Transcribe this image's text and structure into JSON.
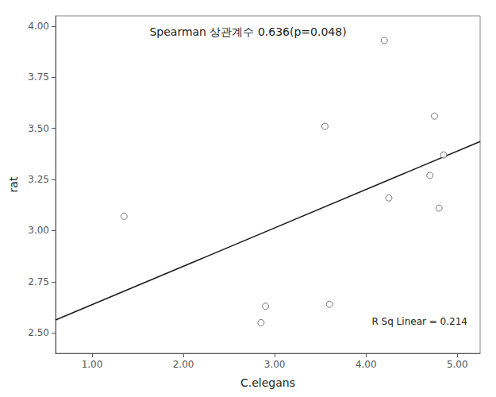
{
  "chart_data": {
    "type": "scatter",
    "xlabel": "C.elegans",
    "ylabel": "rat",
    "annotations": [
      "Spearman 상관계수 0.636(p=0.048)",
      "R Sq Linear = 0.214"
    ],
    "series": [
      {
        "type": "scatter",
        "marker": "open circle",
        "color": "#555555",
        "x": [
          1.35,
          2.85,
          2.9,
          3.55,
          3.6,
          4.2,
          4.25,
          4.7,
          4.75,
          4.8,
          4.85
        ],
        "values": [
          3.07,
          2.55,
          2.63,
          3.51,
          2.64,
          3.93,
          3.16,
          3.27,
          3.56,
          3.11,
          3.37
        ]
      },
      {
        "type": "line",
        "color": "#1a1a1a",
        "line_style": "solid",
        "x": [
          0.6,
          5.25
        ],
        "values": [
          2.5631,
          3.4357
        ]
      }
    ],
    "xlim": [
      0.6,
      5.25
    ],
    "ylim": [
      2.4,
      4.05
    ],
    "xticks": [
      {
        "value": 1.0,
        "label": "1.00"
      },
      {
        "value": 2.0,
        "label": "2.00"
      },
      {
        "value": 3.0,
        "label": "3.00"
      },
      {
        "value": 4.0,
        "label": "4.00"
      },
      {
        "value": 5.0,
        "label": "5.00"
      }
    ],
    "yticks": [
      {
        "value": 2.5,
        "label": "2.50"
      },
      {
        "value": 2.75,
        "label": "2.75"
      },
      {
        "value": 3.0,
        "label": "3.00"
      },
      {
        "value": 3.25,
        "label": "3.25"
      },
      {
        "value": 3.5,
        "label": "3.50"
      },
      {
        "value": 3.75,
        "label": "3.75"
      },
      {
        "value": 4.0,
        "label": "4.00"
      }
    ],
    "grid": false,
    "legend": false
  }
}
